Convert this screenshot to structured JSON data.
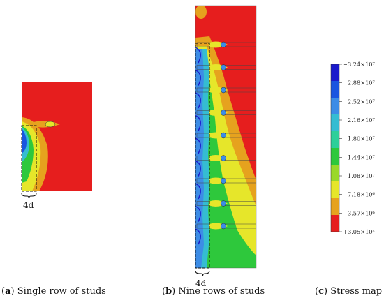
{
  "panels": [
    {
      "letter": "a",
      "caption": "Single row of studs"
    },
    {
      "letter": "b",
      "caption": "Nine rows of studs"
    },
    {
      "letter": "c",
      "caption": "Stress map"
    }
  ],
  "dimension_label": "4d",
  "legend": {
    "ticks": [
      "3.24×10⁷",
      "2.88×10⁷",
      "2.52×10⁷",
      "2.16×10⁷",
      "1.80×10⁷",
      "1.44×10⁷",
      "1.08×10⁷",
      "7.18×10⁶",
      "3.57×10⁶",
      "3.05×10⁴"
    ],
    "signs": [
      "−",
      "",
      "",
      "",
      "",
      "",
      "",
      "",
      "",
      "+"
    ],
    "colors": [
      "#1a1acc",
      "#1a55e0",
      "#3c8ce6",
      "#35bcd2",
      "#2ecf9a",
      "#2ec83c",
      "#9ad82a",
      "#e6e62a",
      "#e6a21e",
      "#e61e1e"
    ]
  },
  "stud_rows_b": 9
}
